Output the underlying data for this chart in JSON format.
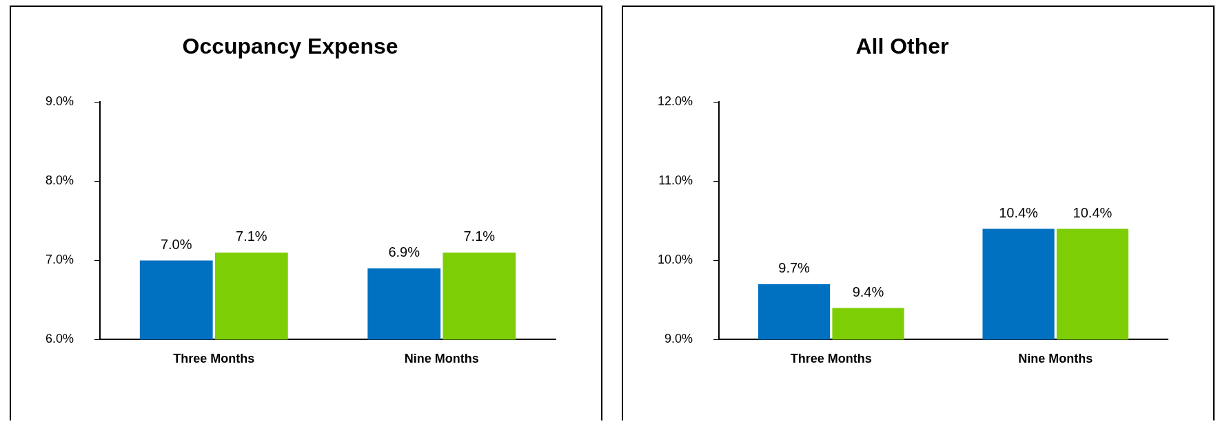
{
  "chart_data": [
    {
      "type": "bar",
      "title": "Occupancy Expense",
      "categories": [
        "Three Months",
        "Nine Months"
      ],
      "series": [
        {
          "color": "#0070c0",
          "values": [
            7.0,
            6.9
          ],
          "value_labels": [
            "7.0%",
            "6.9%"
          ]
        },
        {
          "color": "#7dce05",
          "values": [
            7.1,
            7.1
          ],
          "value_labels": [
            "7.1%",
            "7.1%"
          ]
        }
      ],
      "ylim": [
        6,
        9
      ],
      "yticks": [
        {
          "value": 6,
          "label": "6.0%"
        },
        {
          "value": 7,
          "label": "7.0%"
        },
        {
          "value": 8,
          "label": "8.0%"
        },
        {
          "value": 9,
          "label": "9.0%"
        }
      ],
      "grid": false,
      "legend": false
    },
    {
      "type": "bar",
      "title": "All Other",
      "categories": [
        "Three Months",
        "Nine Months"
      ],
      "series": [
        {
          "color": "#0070c0",
          "values": [
            9.7,
            10.4
          ],
          "value_labels": [
            "9.7%",
            "10.4%"
          ]
        },
        {
          "color": "#7dce05",
          "values": [
            9.4,
            10.4
          ],
          "value_labels": [
            "9.4%",
            "10.4%"
          ]
        }
      ],
      "ylim": [
        9,
        12
      ],
      "yticks": [
        {
          "value": 9,
          "label": "9.0%"
        },
        {
          "value": 10,
          "label": "10.0%"
        },
        {
          "value": 11,
          "label": "11.0%"
        },
        {
          "value": 12,
          "label": "12.0%"
        }
      ],
      "grid": false,
      "legend": false
    }
  ]
}
